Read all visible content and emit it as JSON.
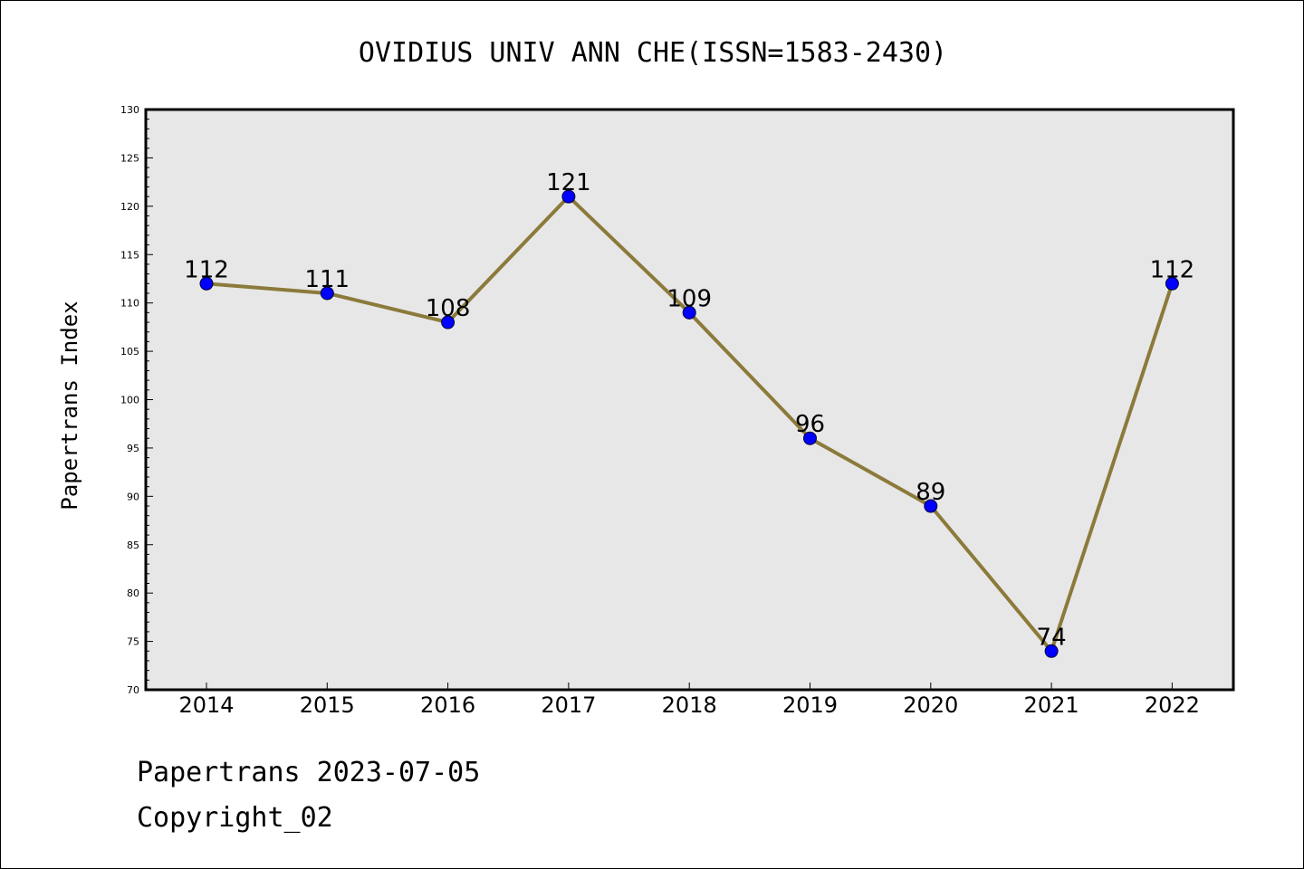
{
  "chart_data": {
    "type": "line",
    "title": "OVIDIUS UNIV ANN CHE(ISSN=1583-2430)",
    "ylabel": "Papertrans Index",
    "xlabel": "",
    "categories": [
      "2014",
      "2015",
      "2016",
      "2017",
      "2018",
      "2019",
      "2020",
      "2021",
      "2022"
    ],
    "values": [
      112,
      111,
      108,
      121,
      109,
      96,
      89,
      74,
      112
    ],
    "data_labels": [
      "112",
      "111",
      "108",
      "121",
      "109",
      "96",
      "89",
      "74",
      "112"
    ],
    "ylim": [
      70,
      130
    ],
    "yticks": [
      70,
      75,
      80,
      85,
      90,
      95,
      100,
      105,
      110,
      115,
      120,
      125,
      130
    ],
    "ytick_labels": [
      "70",
      "75",
      "80",
      "85",
      "90",
      "95",
      "100",
      "105",
      "110",
      "115",
      "120",
      "125",
      "130"
    ],
    "grid": false,
    "colors": {
      "line": "#8b7a3a",
      "marker": "#0000ff",
      "plot_background": "#e7e7e7"
    }
  },
  "footer": {
    "source": "Papertrans 2023-07-05",
    "copyright": "Copyright_02"
  }
}
